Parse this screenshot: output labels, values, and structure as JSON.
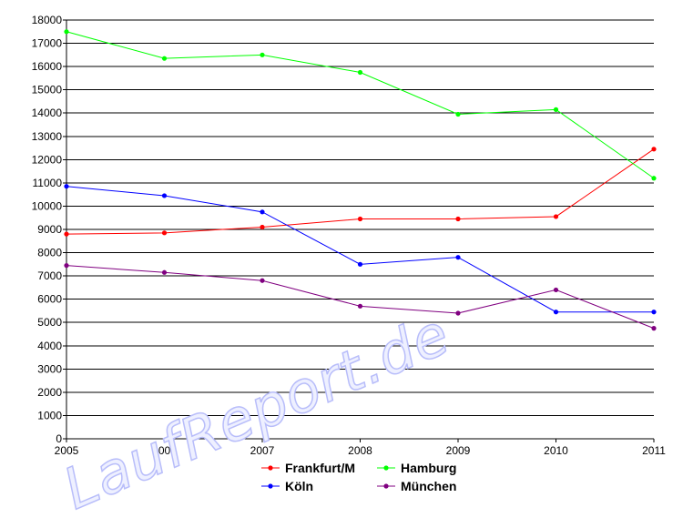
{
  "chart_data": {
    "type": "line",
    "x": [
      2005,
      2006,
      2007,
      2008,
      2009,
      2010,
      2011
    ],
    "ylim": [
      0,
      18000
    ],
    "ytick_step": 1000,
    "grid": true,
    "legend_placement": "bottom",
    "series": [
      {
        "name": "Frankfurt/M",
        "color": "#ff0000",
        "values": [
          8800,
          8850,
          9100,
          9450,
          9450,
          9550,
          12450
        ]
      },
      {
        "name": "Hamburg",
        "color": "#00ff00",
        "values": [
          17500,
          16350,
          16500,
          15750,
          13950,
          14150,
          11200
        ]
      },
      {
        "name": "Köln",
        "color": "#0000ff",
        "values": [
          10850,
          10450,
          9750,
          7500,
          7800,
          5450,
          5450
        ]
      },
      {
        "name": "München",
        "color": "#800080",
        "values": [
          7450,
          7150,
          6800,
          5700,
          5400,
          6400,
          4750
        ]
      }
    ]
  },
  "watermark": "LaufReport.de"
}
